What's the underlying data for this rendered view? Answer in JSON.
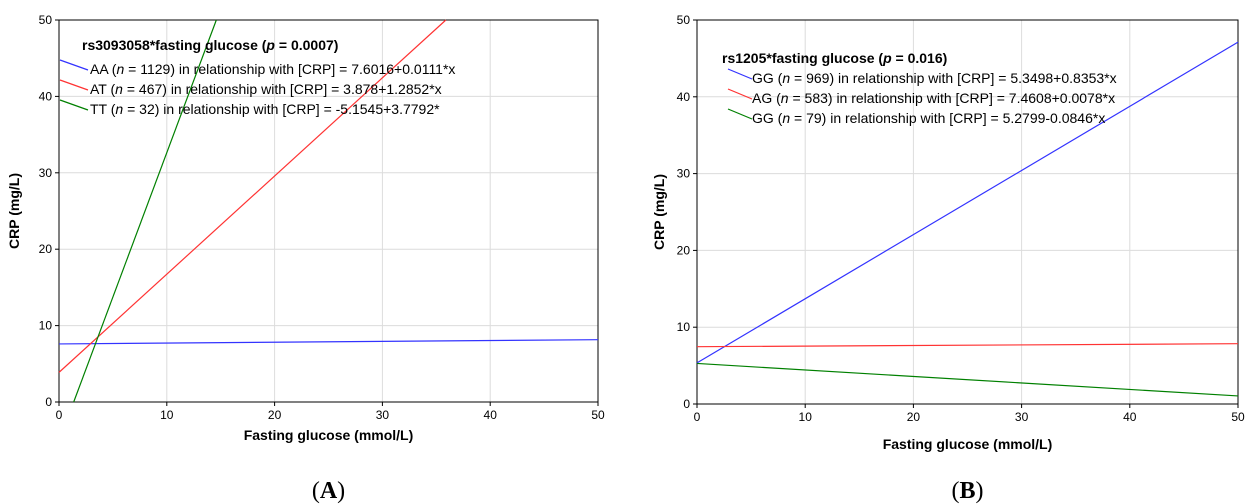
{
  "chart_data": [
    {
      "type": "line",
      "panel_label": {
        "open": "(",
        "letter": "A",
        "close": ")"
      },
      "xlabel": "Fasting glucose (mmol/L)",
      "ylabel": "CRP (mg/L)",
      "xlim": [
        0,
        50
      ],
      "ylim": [
        0,
        50
      ],
      "x_ticks": [
        0,
        10,
        20,
        30,
        40,
        50
      ],
      "y_ticks": [
        0,
        10,
        20,
        30,
        40,
        50
      ],
      "grid": true,
      "legend_position": "top-left",
      "legend_title": {
        "prefix": "rs3093058*fasting glucose (",
        "p": "p",
        "suffix": " = 0.0007)"
      },
      "series": [
        {
          "genotype": "AA",
          "n_text": "n",
          "rest": " = 1129) in relationship with [CRP] = 7.6016+0.0111*x",
          "intercept": 7.6016,
          "slope": 0.0111,
          "color": "#3333ff"
        },
        {
          "genotype": "AT",
          "n_text": "n",
          "rest": " = 467)  in relationship with [CRP] = 3.878+1.2852*x",
          "intercept": 3.878,
          "slope": 1.2852,
          "color": "#ff3333"
        },
        {
          "genotype": "TT",
          "n_text": "n",
          "rest": " = 32) in relationship with [CRP] = -5.1545+3.7792*",
          "intercept": -5.1545,
          "slope": 3.7792,
          "color": "#008000"
        }
      ]
    },
    {
      "type": "line",
      "panel_label": {
        "open": "(",
        "letter": "B",
        "close": ")"
      },
      "xlabel": "Fasting glucose (mmol/L)",
      "ylabel": "CRP (mg/L)",
      "xlim": [
        0,
        50
      ],
      "ylim": [
        0,
        50
      ],
      "x_ticks": [
        0,
        10,
        20,
        30,
        40,
        50
      ],
      "y_ticks": [
        0,
        10,
        20,
        30,
        40,
        50
      ],
      "grid": true,
      "legend_position": "top-left",
      "legend_title": {
        "prefix": "rs1205*fasting glucose (",
        "p": "p",
        "suffix": " = 0.016)"
      },
      "series": [
        {
          "genotype": "GG",
          "n_text": "n",
          "rest": " = 969) in relationship with [CRP] = 5.3498+0.8353*x",
          "intercept": 5.3498,
          "slope": 0.8353,
          "color": "#3333ff"
        },
        {
          "genotype": "AG",
          "n_text": "n",
          "rest": " = 583) in relationship with [CRP] = 7.4608+0.0078*x",
          "intercept": 7.4608,
          "slope": 0.0078,
          "color": "#ff3333"
        },
        {
          "genotype": "GG",
          "n_text": "n",
          "rest": " = 79) in relationship with [CRP] = 5.2799-0.0846*x",
          "intercept": 5.2799,
          "slope": -0.0846,
          "color": "#008000"
        }
      ]
    }
  ]
}
